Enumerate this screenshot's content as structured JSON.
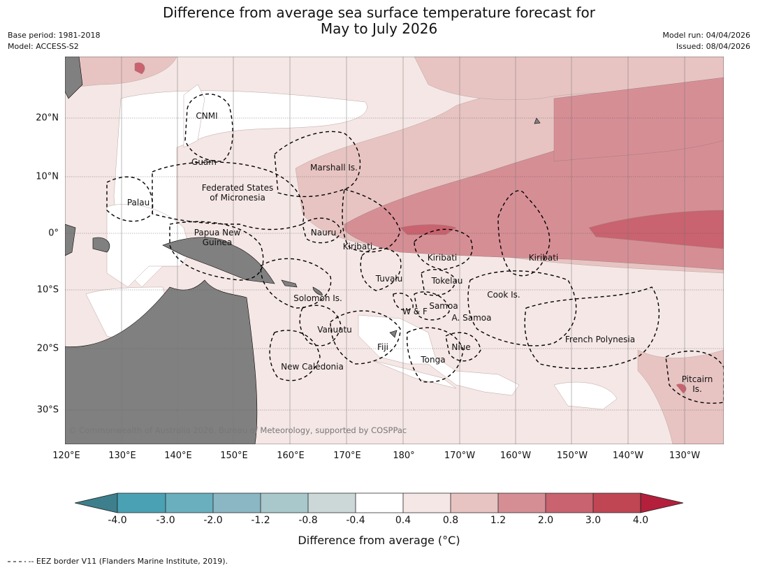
{
  "header": {
    "title_line1": "Difference from average sea surface temperature forecast for",
    "title_line2": "May to July 2026",
    "base_period": "Base period: 1981-2018",
    "model": "Model: ACCESS-S2",
    "model_run": "Model run: 04/04/2026",
    "issued": "Issued: 08/04/2026"
  },
  "map": {
    "lon_labels": [
      "120°E",
      "130°E",
      "140°E",
      "150°E",
      "160°E",
      "170°E",
      "180°",
      "170°W",
      "160°W",
      "150°W",
      "140°W",
      "130°W"
    ],
    "lat_labels": [
      "20°N",
      "10°N",
      "0°",
      "10°S",
      "20°S",
      "30°S"
    ],
    "places": [
      "CNMI",
      "Guam",
      "Marshall Is.",
      "Federated States\nof Micronesia",
      "Palau",
      "Papua New\nGuinea",
      "Nauru",
      "Kiribati",
      "Kiribati",
      "Kiribati",
      "Tuvalu",
      "Tokelau",
      "Solomon Is.",
      "Cook Is.",
      "Samoa",
      "W & F",
      "A. Samoa",
      "Vanuatu",
      "Fiji",
      "Niue",
      "Tonga",
      "French Polynesia",
      "New Caledonia",
      "Pitcairn\nIs."
    ],
    "copyright": "© Commonwealth of Australia 2026, Bureau of Meteorology, supported by COSPPac",
    "colors": {
      "land": "#808080",
      "ocean_neutral": "#ffffff",
      "warm1": "#f5e7e5",
      "warm2": "#e7c4c2",
      "warm3": "#d68e95",
      "warm4": "#c9636f"
    }
  },
  "colorbar": {
    "title": "Difference from average (°C)",
    "tick_labels": [
      "-4.0",
      "-3.0",
      "-2.0",
      "-1.2",
      "-0.8",
      "-0.4",
      "0.4",
      "0.8",
      "1.2",
      "2.0",
      "3.0",
      "4.0"
    ],
    "colors": [
      "#3d7f8c",
      "#4aa1b4",
      "#6aafbe",
      "#8ab7c3",
      "#a8c8cc",
      "#ccd8d8",
      "#ffffff",
      "#f5e7e5",
      "#e7c4c2",
      "#d68e95",
      "#c9636f",
      "#c04654",
      "#b41f3c"
    ]
  },
  "legend": {
    "eez_text": "-- EEZ border V11 (Flanders Marine Institute, 2019)."
  }
}
